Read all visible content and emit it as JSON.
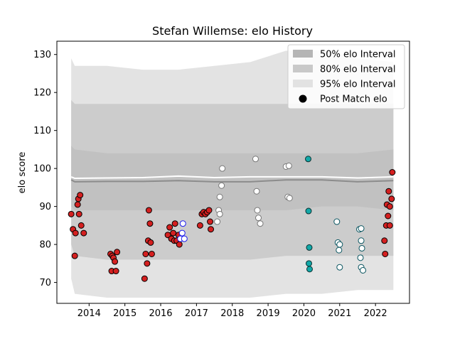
{
  "chart_data": {
    "type": "scatter",
    "title": "Stefan Willemse: elo History",
    "xlabel": "",
    "ylabel": "elo score",
    "xlim": [
      2013.1,
      2022.95
    ],
    "ylim": [
      64.5,
      133.5
    ],
    "x_ticks": [
      2014,
      2015,
      2016,
      2017,
      2018,
      2019,
      2020,
      2021,
      2022
    ],
    "y_ticks": [
      70,
      80,
      90,
      100,
      110,
      120,
      130
    ],
    "grid": false,
    "legend_position": "top-right",
    "legend": [
      {
        "label": "50% elo Interval",
        "kind": "band",
        "color": "#b5b5b5"
      },
      {
        "label": "80% elo Interval",
        "kind": "band",
        "color": "#c9c9c9"
      },
      {
        "label": "95% elo Interval",
        "kind": "band",
        "color": "#e2e2e2"
      },
      {
        "label": "Post Match elo",
        "kind": "marker",
        "color": "#000000"
      }
    ],
    "colors": {
      "band95": "#e3e3e3",
      "band80": "#cccccc",
      "band50": "#c1c1c1",
      "median_line": "#8c8c8c",
      "mean_line": "#ffffff",
      "red_fill": "#d42020",
      "white_fill": "#ffffff",
      "cyan_fill": "#12a8a8"
    },
    "bands": {
      "x": [
        2013.5,
        2013.6,
        2014.5,
        2015.5,
        2016.5,
        2017.5,
        2018.5,
        2019.5,
        2020.5,
        2021.5,
        2022.5
      ],
      "p95_upper": [
        129,
        127,
        127,
        126,
        126,
        127,
        128,
        131,
        131,
        129,
        128
      ],
      "p95_lower": [
        71,
        67,
        66,
        66,
        66,
        66,
        66,
        67,
        67,
        68,
        68
      ],
      "p80_upper": [
        118,
        117,
        117,
        117,
        117,
        117,
        117,
        117,
        117,
        117,
        117
      ],
      "p80_lower": [
        80,
        77,
        76,
        76,
        76,
        76,
        76,
        77,
        77,
        77,
        77
      ],
      "p50_upper": [
        106,
        105,
        104,
        104,
        104,
        104,
        104,
        104,
        104,
        104,
        105
      ],
      "p50_lower": [
        90,
        89,
        89,
        89,
        89,
        89,
        89,
        89,
        90,
        90,
        89
      ],
      "median": [
        97,
        96.5,
        96.6,
        96.6,
        96.8,
        96.5,
        96.5,
        97,
        97,
        96.5,
        96.8
      ],
      "mean": [
        97.8,
        97.4,
        97.5,
        97.6,
        98,
        97.6,
        97.8,
        97.8,
        97.8,
        97.5,
        97.8
      ]
    },
    "series": [
      {
        "name": "Post Match elo",
        "points": [
          {
            "x": 2013.5,
            "y": 88,
            "c": "red"
          },
          {
            "x": 2013.55,
            "y": 84,
            "c": "red"
          },
          {
            "x": 2013.6,
            "y": 77,
            "c": "red"
          },
          {
            "x": 2013.62,
            "y": 83,
            "c": "red"
          },
          {
            "x": 2013.68,
            "y": 90.5,
            "c": "red"
          },
          {
            "x": 2013.7,
            "y": 92,
            "c": "red"
          },
          {
            "x": 2013.72,
            "y": 88,
            "c": "red"
          },
          {
            "x": 2013.75,
            "y": 93,
            "c": "red"
          },
          {
            "x": 2013.78,
            "y": 85,
            "c": "red"
          },
          {
            "x": 2013.85,
            "y": 83,
            "c": "red"
          },
          {
            "x": 2014.6,
            "y": 77.5,
            "c": "red"
          },
          {
            "x": 2014.63,
            "y": 73,
            "c": "red"
          },
          {
            "x": 2014.65,
            "y": 77,
            "c": "red"
          },
          {
            "x": 2014.68,
            "y": 76.5,
            "c": "red"
          },
          {
            "x": 2014.72,
            "y": 75.5,
            "c": "red"
          },
          {
            "x": 2014.75,
            "y": 73,
            "c": "red"
          },
          {
            "x": 2014.78,
            "y": 78,
            "c": "red"
          },
          {
            "x": 2015.55,
            "y": 71,
            "c": "red"
          },
          {
            "x": 2015.58,
            "y": 77.5,
            "c": "red"
          },
          {
            "x": 2015.62,
            "y": 75,
            "c": "red"
          },
          {
            "x": 2015.65,
            "y": 81,
            "c": "red"
          },
          {
            "x": 2015.67,
            "y": 89,
            "c": "red"
          },
          {
            "x": 2015.7,
            "y": 85.5,
            "c": "red"
          },
          {
            "x": 2015.72,
            "y": 80.5,
            "c": "red"
          },
          {
            "x": 2015.75,
            "y": 77.5,
            "c": "red"
          },
          {
            "x": 2016.2,
            "y": 82.5,
            "c": "red"
          },
          {
            "x": 2016.25,
            "y": 84.5,
            "c": "red"
          },
          {
            "x": 2016.3,
            "y": 81.5,
            "c": "red"
          },
          {
            "x": 2016.35,
            "y": 83,
            "c": "red"
          },
          {
            "x": 2016.38,
            "y": 81,
            "c": "red"
          },
          {
            "x": 2016.4,
            "y": 85.5,
            "c": "red"
          },
          {
            "x": 2016.45,
            "y": 81,
            "c": "red"
          },
          {
            "x": 2016.5,
            "y": 82.5,
            "c": "red"
          },
          {
            "x": 2016.52,
            "y": 80,
            "c": "red"
          },
          {
            "x": 2016.55,
            "y": 81.5,
            "c": "white_blue"
          },
          {
            "x": 2016.6,
            "y": 83,
            "c": "white_blue"
          },
          {
            "x": 2016.62,
            "y": 85.5,
            "c": "white_blue"
          },
          {
            "x": 2016.66,
            "y": 81.5,
            "c": "white_blue"
          },
          {
            "x": 2017.1,
            "y": 85,
            "c": "red"
          },
          {
            "x": 2017.15,
            "y": 88,
            "c": "red"
          },
          {
            "x": 2017.2,
            "y": 88.5,
            "c": "red"
          },
          {
            "x": 2017.25,
            "y": 88,
            "c": "red"
          },
          {
            "x": 2017.3,
            "y": 88.5,
            "c": "red"
          },
          {
            "x": 2017.35,
            "y": 89,
            "c": "red"
          },
          {
            "x": 2017.38,
            "y": 86,
            "c": "red"
          },
          {
            "x": 2017.4,
            "y": 84,
            "c": "red"
          },
          {
            "x": 2017.58,
            "y": 86,
            "c": "white"
          },
          {
            "x": 2017.62,
            "y": 89,
            "c": "white"
          },
          {
            "x": 2017.65,
            "y": 88,
            "c": "white"
          },
          {
            "x": 2017.65,
            "y": 92.5,
            "c": "white"
          },
          {
            "x": 2017.7,
            "y": 95.5,
            "c": "white"
          },
          {
            "x": 2017.72,
            "y": 100,
            "c": "white"
          },
          {
            "x": 2018.65,
            "y": 102.5,
            "c": "white"
          },
          {
            "x": 2018.68,
            "y": 94,
            "c": "white"
          },
          {
            "x": 2018.7,
            "y": 89,
            "c": "white"
          },
          {
            "x": 2018.73,
            "y": 87,
            "c": "white"
          },
          {
            "x": 2018.78,
            "y": 85.5,
            "c": "white"
          },
          {
            "x": 2019.5,
            "y": 100.5,
            "c": "white"
          },
          {
            "x": 2019.55,
            "y": 92.5,
            "c": "white"
          },
          {
            "x": 2019.58,
            "y": 100.7,
            "c": "white"
          },
          {
            "x": 2019.6,
            "y": 92.2,
            "c": "white"
          },
          {
            "x": 2020.12,
            "y": 102.5,
            "c": "cyan"
          },
          {
            "x": 2020.13,
            "y": 88.8,
            "c": "cyan"
          },
          {
            "x": 2020.15,
            "y": 79.2,
            "c": "cyan"
          },
          {
            "x": 2020.14,
            "y": 75,
            "c": "cyan"
          },
          {
            "x": 2020.16,
            "y": 73.5,
            "c": "cyan"
          },
          {
            "x": 2020.92,
            "y": 86,
            "c": "white_teal"
          },
          {
            "x": 2020.95,
            "y": 80.5,
            "c": "white_teal"
          },
          {
            "x": 2020.98,
            "y": 78.5,
            "c": "white_teal"
          },
          {
            "x": 2021.0,
            "y": 80,
            "c": "white_teal"
          },
          {
            "x": 2021.0,
            "y": 74,
            "c": "white_teal"
          },
          {
            "x": 2021.55,
            "y": 84,
            "c": "white_teal"
          },
          {
            "x": 2021.6,
            "y": 84.2,
            "c": "white_teal"
          },
          {
            "x": 2021.58,
            "y": 76.5,
            "c": "white_teal"
          },
          {
            "x": 2021.6,
            "y": 81,
            "c": "white_teal"
          },
          {
            "x": 2021.62,
            "y": 79,
            "c": "white_teal"
          },
          {
            "x": 2021.6,
            "y": 74,
            "c": "white_teal"
          },
          {
            "x": 2021.65,
            "y": 73.2,
            "c": "white_teal"
          },
          {
            "x": 2022.25,
            "y": 81,
            "c": "red"
          },
          {
            "x": 2022.27,
            "y": 77.5,
            "c": "red"
          },
          {
            "x": 2022.3,
            "y": 85,
            "c": "red"
          },
          {
            "x": 2022.32,
            "y": 90.5,
            "c": "red"
          },
          {
            "x": 2022.35,
            "y": 87.5,
            "c": "red"
          },
          {
            "x": 2022.37,
            "y": 94,
            "c": "red"
          },
          {
            "x": 2022.4,
            "y": 90,
            "c": "red"
          },
          {
            "x": 2022.4,
            "y": 85,
            "c": "red"
          },
          {
            "x": 2022.45,
            "y": 92,
            "c": "red"
          },
          {
            "x": 2022.47,
            "y": 99,
            "c": "red"
          }
        ]
      }
    ]
  }
}
